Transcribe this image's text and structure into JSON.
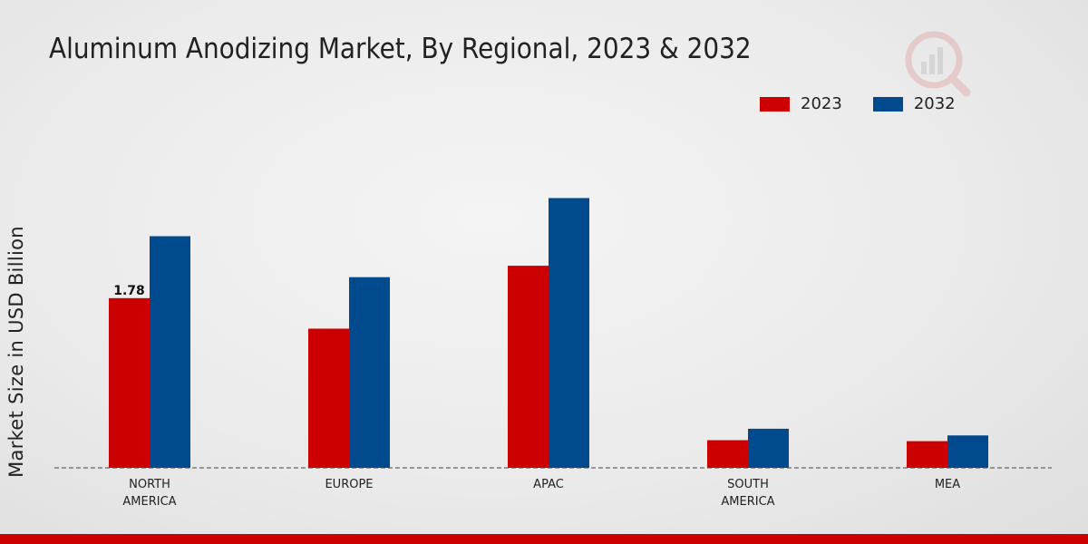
{
  "chart_data": {
    "type": "bar",
    "title": "Aluminum Anodizing Market, By Regional, 2023 & 2032",
    "xlabel": "",
    "ylabel": "Market Size in USD Billion",
    "categories": [
      "NORTH\nAMERICA",
      "EUROPE",
      "APAC",
      "SOUTH\nAMERICA",
      "MEA"
    ],
    "series": [
      {
        "name": "2023",
        "color": "#cc0000",
        "values": [
          1.78,
          1.46,
          2.12,
          0.29,
          0.28
        ]
      },
      {
        "name": "2032",
        "color": "#004a8d",
        "values": [
          2.43,
          2.0,
          2.83,
          0.41,
          0.34
        ]
      }
    ],
    "data_labels": [
      {
        "series": 0,
        "index": 0,
        "text": "1.78"
      }
    ],
    "ylim": [
      0,
      3.5
    ],
    "grid": false,
    "legend_position": "top-right"
  },
  "colors": {
    "accent": "#cc0000",
    "series_2023": "#cc0000",
    "series_2032": "#004a8d",
    "bottom_bar": "#cc0000"
  }
}
